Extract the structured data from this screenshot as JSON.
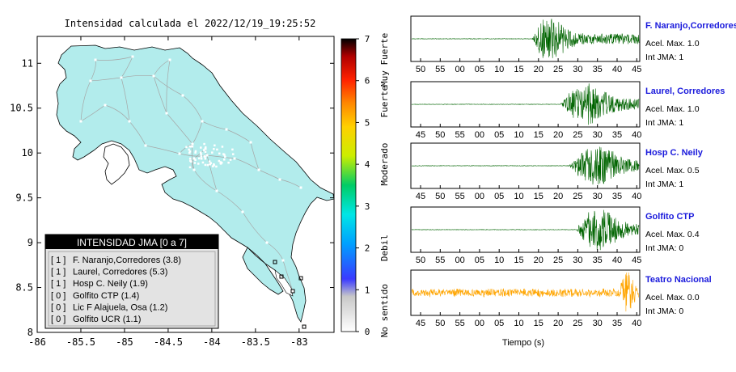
{
  "map": {
    "title": "Intensidad calculada el 2022/12/19_19:25:52",
    "x_ticks": [
      -86,
      -85.5,
      -85,
      -84.5,
      -84,
      -83.5,
      -83
    ],
    "y_ticks": [
      8,
      8.5,
      9,
      9.5,
      10,
      10.5,
      11
    ],
    "xlim": [
      -86,
      -82.6
    ],
    "ylim": [
      8,
      11.3
    ],
    "colors": {
      "land": "#b2ecec",
      "roads": "#a6a6a6",
      "border": "#000000"
    }
  },
  "legend": {
    "title": "INTENSIDAD JMA [0 a 7]",
    "entries": [
      {
        "level": "[ 1 ]",
        "label": "F. Naranjo,Corredores (3.8)"
      },
      {
        "level": "[ 1 ]",
        "label": "Laurel, Corredores (5.3)"
      },
      {
        "level": "[ 1 ]",
        "label": "Hosp C. Neily (1.9)"
      },
      {
        "level": "[ 0 ]",
        "label": "Golfito CTP (1.4)"
      },
      {
        "level": "[ 0 ]",
        "label": "Lic F Alajuela, Osa (1.2)"
      },
      {
        "level": "[ 0 ]",
        "label": "Golfito UCR (1.1)"
      }
    ]
  },
  "colorbar": {
    "ticks": [
      0,
      1,
      2,
      3,
      4,
      5,
      6,
      7
    ],
    "categories": [
      {
        "label": "No sentido",
        "center": 0.5
      },
      {
        "label": "Debil",
        "center": 2.0
      },
      {
        "label": "Moderado",
        "center": 4.0
      },
      {
        "label": "Fuerte",
        "center": 5.5
      },
      {
        "label": "Muy Fuerte",
        "center": 6.5
      }
    ]
  },
  "waveforms": {
    "xlabel": "Tiempo (s)",
    "panels": [
      {
        "station": "F. Naranjo,Corredores",
        "accel": "Acel. Max. 1.0",
        "int": "Int JMA: 1",
        "ticks": [
          "50",
          "55",
          "00",
          "05",
          "10",
          "15",
          "20",
          "25",
          "30",
          "35",
          "40",
          "45"
        ],
        "first_tick": 50,
        "onset": 0.53,
        "peak": 0.6,
        "color": "#006400",
        "seed": 11
      },
      {
        "station": "Laurel, Corredores",
        "accel": "Acel. Max. 1.0",
        "int": "Int JMA: 1",
        "ticks": [
          "45",
          "50",
          "55",
          "00",
          "05",
          "10",
          "15",
          "20",
          "25",
          "30",
          "35",
          "40"
        ],
        "first_tick": 45,
        "onset": 0.65,
        "peak": 0.78,
        "color": "#006400",
        "seed": 23
      },
      {
        "station": "Hosp C. Neily",
        "accel": "Acel. Max. 0.5",
        "int": "Int JMA: 1",
        "ticks": [
          "45",
          "50",
          "55",
          "00",
          "05",
          "10",
          "15",
          "20",
          "25",
          "30",
          "35",
          "40"
        ],
        "first_tick": 45,
        "onset": 0.69,
        "peak": 0.82,
        "color": "#006400",
        "seed": 37
      },
      {
        "station": "Golfito CTP",
        "accel": "Acel. Max. 0.4",
        "int": "Int JMA: 0",
        "ticks": [
          "50",
          "55",
          "00",
          "05",
          "10",
          "15",
          "20",
          "25",
          "30",
          "35",
          "40",
          "45"
        ],
        "first_tick": 50,
        "onset": 0.72,
        "peak": 0.82,
        "color": "#006400",
        "seed": 53
      },
      {
        "station": "Teatro Nacional",
        "accel": "Acel. Max. 0.0",
        "int": "Int JMA: 0",
        "ticks": [
          "45",
          "50",
          "55",
          "00",
          "05",
          "10",
          "15",
          "20",
          "25",
          "30",
          "35",
          "40"
        ],
        "first_tick": 45,
        "onset": 0.0,
        "peak": 0.95,
        "color": "#ffa500",
        "seed": 71
      }
    ]
  },
  "chart_data": {
    "type": "line",
    "title": "Intensidad calculada el 2022/12/19_19:25:52",
    "xlabel": "Tiempo (s)",
    "ylabel": "",
    "series": [
      {
        "name": "F. Naranjo,Corredores",
        "values": [
          0,
          0,
          0,
          0,
          0,
          0.05,
          1.0,
          0.7,
          0.5,
          0.3,
          0.2,
          0.1
        ]
      },
      {
        "name": "Laurel, Corredores",
        "values": [
          0,
          0,
          0,
          0,
          0,
          0,
          0,
          0.6,
          1.0,
          0.8,
          0.4,
          0.2
        ]
      },
      {
        "name": "Hosp C. Neily",
        "values": [
          0,
          0,
          0,
          0,
          0,
          0,
          0,
          0.3,
          0.7,
          1.0,
          0.4,
          0.1
        ]
      },
      {
        "name": "Golfito CTP",
        "values": [
          0,
          0,
          0,
          0,
          0,
          0,
          0,
          0.1,
          0.5,
          1.0,
          0.5,
          0.2
        ]
      },
      {
        "name": "Teatro Nacional",
        "values": [
          0.3,
          0.3,
          0.3,
          0.3,
          0.3,
          0.3,
          0.3,
          0.3,
          0.3,
          0.3,
          0.3,
          1.0
        ]
      }
    ]
  }
}
